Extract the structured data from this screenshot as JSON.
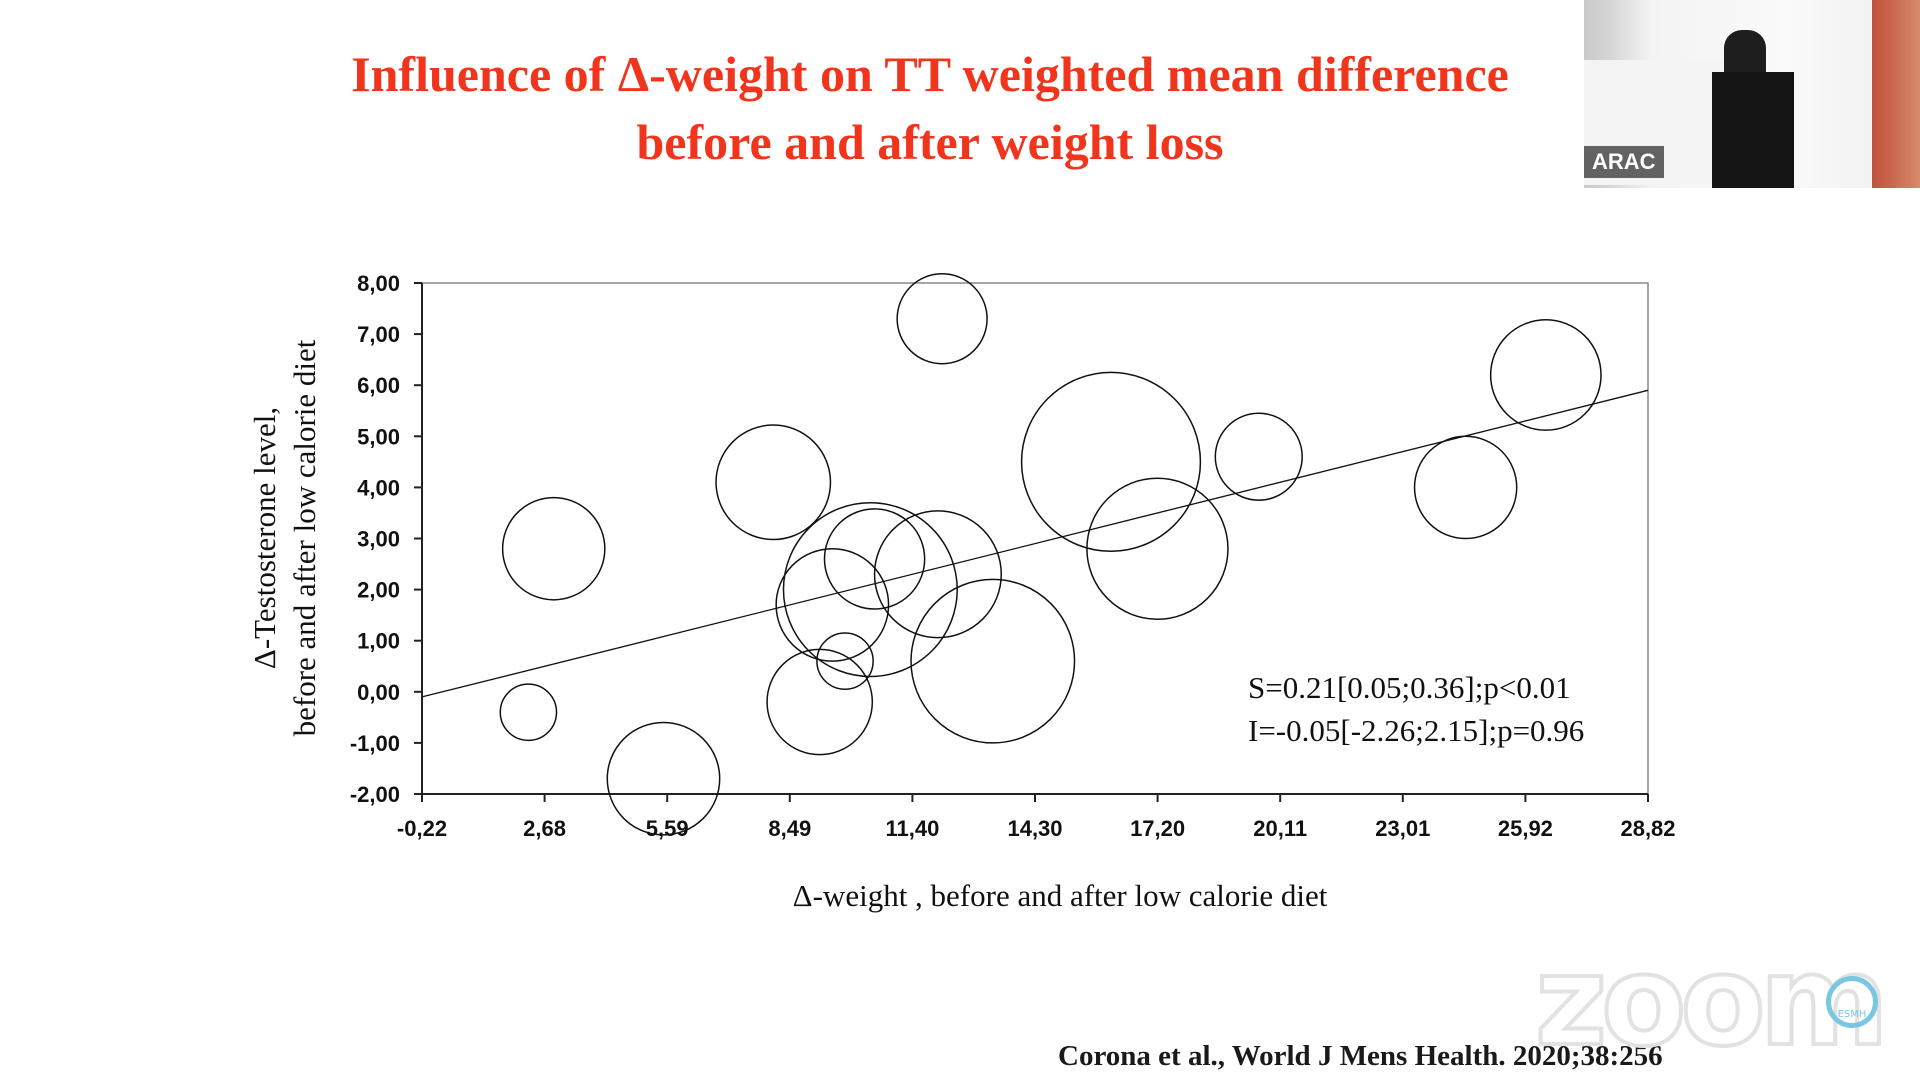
{
  "slide": {
    "title_line1": "Influence of Δ-weight on TT weighted mean difference",
    "title_line2": "before and after weight loss",
    "citation": "Corona et al., World J Mens Health. 2020;38:256"
  },
  "overlay": {
    "speaker_name": "ARAC",
    "watermark": "zoom",
    "logo_text": "ESMH"
  },
  "colors": {
    "title": "#f0351c",
    "marks": "#111111"
  },
  "chart_data": {
    "type": "scatter",
    "subtype": "bubble",
    "xlabel": "Δ-weight , before and after low calorie diet",
    "ylabel_line1": "Δ-Testosterone level,",
    "ylabel_line2": "before and after low calorie diet",
    "xlim": [
      -0.22,
      28.82
    ],
    "ylim": [
      -2.0,
      8.0
    ],
    "x_ticks": [
      "-0,22",
      "2,68",
      "5,59",
      "8,49",
      "11,40",
      "14,30",
      "17,20",
      "20,11",
      "23,01",
      "25,92",
      "28,82"
    ],
    "y_ticks": [
      "8,00",
      "7,00",
      "6,00",
      "5,00",
      "4,00",
      "3,00",
      "2,00",
      "1,00",
      "0,00",
      "-1,00",
      "-2,00"
    ],
    "grid": false,
    "points": [
      {
        "x": 2.3,
        "y": -0.4,
        "r": 0.55
      },
      {
        "x": 2.9,
        "y": 2.8,
        "r": 1.0
      },
      {
        "x": 5.5,
        "y": -1.7,
        "r": 1.1
      },
      {
        "x": 8.1,
        "y": 4.1,
        "r": 1.12
      },
      {
        "x": 9.2,
        "y": -0.2,
        "r": 1.03
      },
      {
        "x": 9.5,
        "y": 1.7,
        "r": 1.1
      },
      {
        "x": 9.8,
        "y": 0.6,
        "r": 0.55
      },
      {
        "x": 10.4,
        "y": 2.0,
        "r": 1.7
      },
      {
        "x": 10.5,
        "y": 2.6,
        "r": 0.98
      },
      {
        "x": 12.0,
        "y": 2.3,
        "r": 1.24
      },
      {
        "x": 12.1,
        "y": 7.3,
        "r": 0.88
      },
      {
        "x": 13.3,
        "y": 0.6,
        "r": 1.6
      },
      {
        "x": 16.1,
        "y": 4.5,
        "r": 1.75
      },
      {
        "x": 17.2,
        "y": 2.8,
        "r": 1.38
      },
      {
        "x": 19.6,
        "y": 4.6,
        "r": 0.85
      },
      {
        "x": 24.5,
        "y": 4.0,
        "r": 1.0
      },
      {
        "x": 26.4,
        "y": 6.2,
        "r": 1.08
      }
    ],
    "regression": {
      "x": [
        -0.22,
        28.82
      ],
      "y": [
        -0.1,
        5.9
      ]
    },
    "annotations": [
      "S=0.21[0.05;0.36];p<0.01",
      "I=-0.05[-2.26;2.15];p=0.96"
    ]
  }
}
